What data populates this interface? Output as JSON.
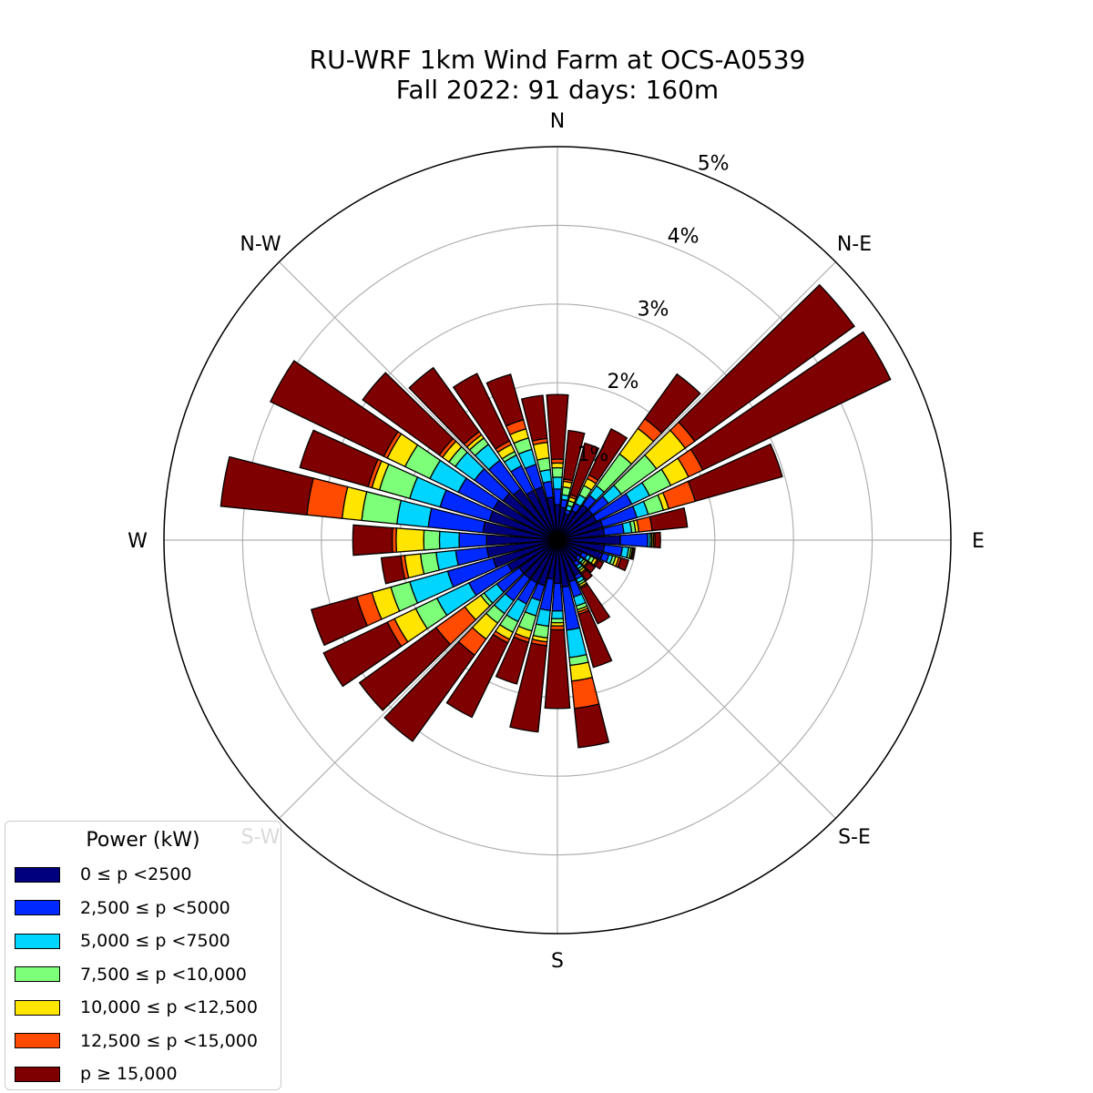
{
  "chart_data": {
    "type": "windrose",
    "title_line1": "RU-WRF 1km Wind Farm at OCS-A0539",
    "title_line2": "Fall 2022: 91 days: 160m",
    "directions": [
      "N",
      "N-E",
      "E",
      "S-E",
      "S",
      "S-W",
      "W",
      "N-W"
    ],
    "radial_ticks": [
      "1%",
      "2%",
      "3%",
      "4%",
      "5%"
    ],
    "radial_tick_values": [
      1,
      2,
      3,
      4,
      5
    ],
    "rmax": 5,
    "sector_count": 36,
    "sector_angles_deg": [
      0,
      10,
      20,
      30,
      40,
      50,
      60,
      70,
      80,
      90,
      100,
      110,
      120,
      130,
      140,
      150,
      160,
      170,
      180,
      190,
      200,
      210,
      220,
      230,
      240,
      250,
      260,
      270,
      280,
      290,
      300,
      310,
      320,
      330,
      340,
      350
    ],
    "legend_title": "Power (kW)",
    "bins": [
      {
        "label": "0 ≤  p <2500",
        "color": "#00007f"
      },
      {
        "label": "2,500 ≤  p <5000",
        "color": "#0029ff"
      },
      {
        "label": "5,000 ≤  p <7500",
        "color": "#00d5ff"
      },
      {
        "label": "7,500 ≤  p <10,000",
        "color": "#7dff7a"
      },
      {
        "label": "10,000 ≤  p <12,500",
        "color": "#ffe500"
      },
      {
        "label": "12,500 ≤  p <15,000",
        "color": "#ff4a00"
      },
      {
        "label": "p  ≥ 15,000",
        "color": "#7f0000"
      }
    ],
    "sectors": [
      {
        "dir": 0,
        "values": [
          0.45,
          0.2,
          0.15,
          0.12,
          0.06,
          0.05,
          0.82
        ]
      },
      {
        "dir": 10,
        "values": [
          0.42,
          0.1,
          0.06,
          0.1,
          0.07,
          0.03,
          0.62
        ]
      },
      {
        "dir": 20,
        "values": [
          0.35,
          0.05,
          0.06,
          0.06,
          0.05,
          0.03,
          0.68
        ]
      },
      {
        "dir": 30,
        "values": [
          0.42,
          0.1,
          0.12,
          0.13,
          0.1,
          0.05,
          0.65
        ]
      },
      {
        "dir": 40,
        "values": [
          0.55,
          0.15,
          0.15,
          0.5,
          0.4,
          0.15,
          0.7
        ]
      },
      {
        "dir": 50,
        "values": [
          0.55,
          0.25,
          0.2,
          0.55,
          0.45,
          0.15,
          2.5
        ]
      },
      {
        "dir": 60,
        "values": [
          0.55,
          0.5,
          0.25,
          0.3,
          0.25,
          0.2,
          2.65
        ]
      },
      {
        "dir": 70,
        "values": [
          0.6,
          0.45,
          0.15,
          0.2,
          0.07,
          0.35,
          1.15
        ]
      },
      {
        "dir": 80,
        "values": [
          0.6,
          0.25,
          0.1,
          0.05,
          0.04,
          0.17,
          0.45
        ]
      },
      {
        "dir": 90,
        "values": [
          0.8,
          0.35,
          0.03,
          0.02,
          0.02,
          0.02,
          0.07
        ]
      },
      {
        "dir": 100,
        "values": [
          0.6,
          0.23,
          0.08,
          0.03,
          0.02,
          0.01,
          0.02
        ]
      },
      {
        "dir": 110,
        "values": [
          0.6,
          0.08,
          0.05,
          0.04,
          0.04,
          0.03,
          0.1
        ]
      },
      {
        "dir": 120,
        "values": [
          0.35,
          0.07,
          0.05,
          0.05,
          0.04,
          0.02,
          0.07
        ]
      },
      {
        "dir": 130,
        "values": [
          0.32,
          0.05,
          0.04,
          0.03,
          0.03,
          0.02,
          0.1
        ]
      },
      {
        "dir": 140,
        "values": [
          0.35,
          0.06,
          0.04,
          0.03,
          0.03,
          0.02,
          0.1
        ]
      },
      {
        "dir": 150,
        "values": [
          0.5,
          0.05,
          0.05,
          0.03,
          0.03,
          0.02,
          0.5
        ]
      },
      {
        "dir": 160,
        "values": [
          0.55,
          0.2,
          0.12,
          0.05,
          0.03,
          0.03,
          0.7
        ]
      },
      {
        "dir": 170,
        "values": [
          0.6,
          0.55,
          0.35,
          0.1,
          0.2,
          0.35,
          0.5
        ]
      },
      {
        "dir": 180,
        "values": [
          0.55,
          0.35,
          0.1,
          0.05,
          0.04,
          0.05,
          1.0
        ]
      },
      {
        "dir": 190,
        "values": [
          0.5,
          0.4,
          0.2,
          0.15,
          0.05,
          0.05,
          1.1
        ]
      },
      {
        "dir": 200,
        "values": [
          0.6,
          0.2,
          0.2,
          0.2,
          0.1,
          0.05,
          0.55
        ]
      },
      {
        "dir": 210,
        "values": [
          0.6,
          0.3,
          0.25,
          0.15,
          0.1,
          0.05,
          1.05
        ]
      },
      {
        "dir": 220,
        "values": [
          0.6,
          0.35,
          0.2,
          0.15,
          0.25,
          0.25,
          1.35
        ]
      },
      {
        "dir": 230,
        "values": [
          0.6,
          0.35,
          0.2,
          0.05,
          0.25,
          0.45,
          1.2
        ]
      },
      {
        "dir": 240,
        "values": [
          0.7,
          0.55,
          0.45,
          0.3,
          0.3,
          0.1,
          0.9
        ]
      },
      {
        "dir": 250,
        "values": [
          0.85,
          0.6,
          0.5,
          0.25,
          0.25,
          0.2,
          0.6
        ]
      },
      {
        "dir": 260,
        "values": [
          0.9,
          0.4,
          0.25,
          0.2,
          0.2,
          0.05,
          0.25
        ]
      },
      {
        "dir": 270,
        "values": [
          0.9,
          0.35,
          0.25,
          0.2,
          0.35,
          0.05,
          0.5
        ]
      },
      {
        "dir": 280,
        "values": [
          0.95,
          0.7,
          0.4,
          0.45,
          0.25,
          0.45,
          1.1
        ]
      },
      {
        "dir": 290,
        "values": [
          0.9,
          0.65,
          0.4,
          0.4,
          0.1,
          0.05,
          0.9
        ]
      },
      {
        "dir": 300,
        "values": [
          0.9,
          0.5,
          0.4,
          0.35,
          0.25,
          0.05,
          1.6
        ]
      },
      {
        "dir": 310,
        "values": [
          0.85,
          0.45,
          0.3,
          0.1,
          0.1,
          0.05,
          1.2
        ]
      },
      {
        "dir": 320,
        "values": [
          0.8,
          0.45,
          0.25,
          0.1,
          0.05,
          0.05,
          1.0
        ]
      },
      {
        "dir": 330,
        "values": [
          0.7,
          0.35,
          0.15,
          0.05,
          0.1,
          0.05,
          0.95
        ]
      },
      {
        "dir": 340,
        "values": [
          0.7,
          0.3,
          0.2,
          0.15,
          0.12,
          0.12,
          0.6
        ]
      },
      {
        "dir": 350,
        "values": [
          0.55,
          0.2,
          0.15,
          0.15,
          0.2,
          0.05,
          0.55
        ]
      }
    ]
  }
}
